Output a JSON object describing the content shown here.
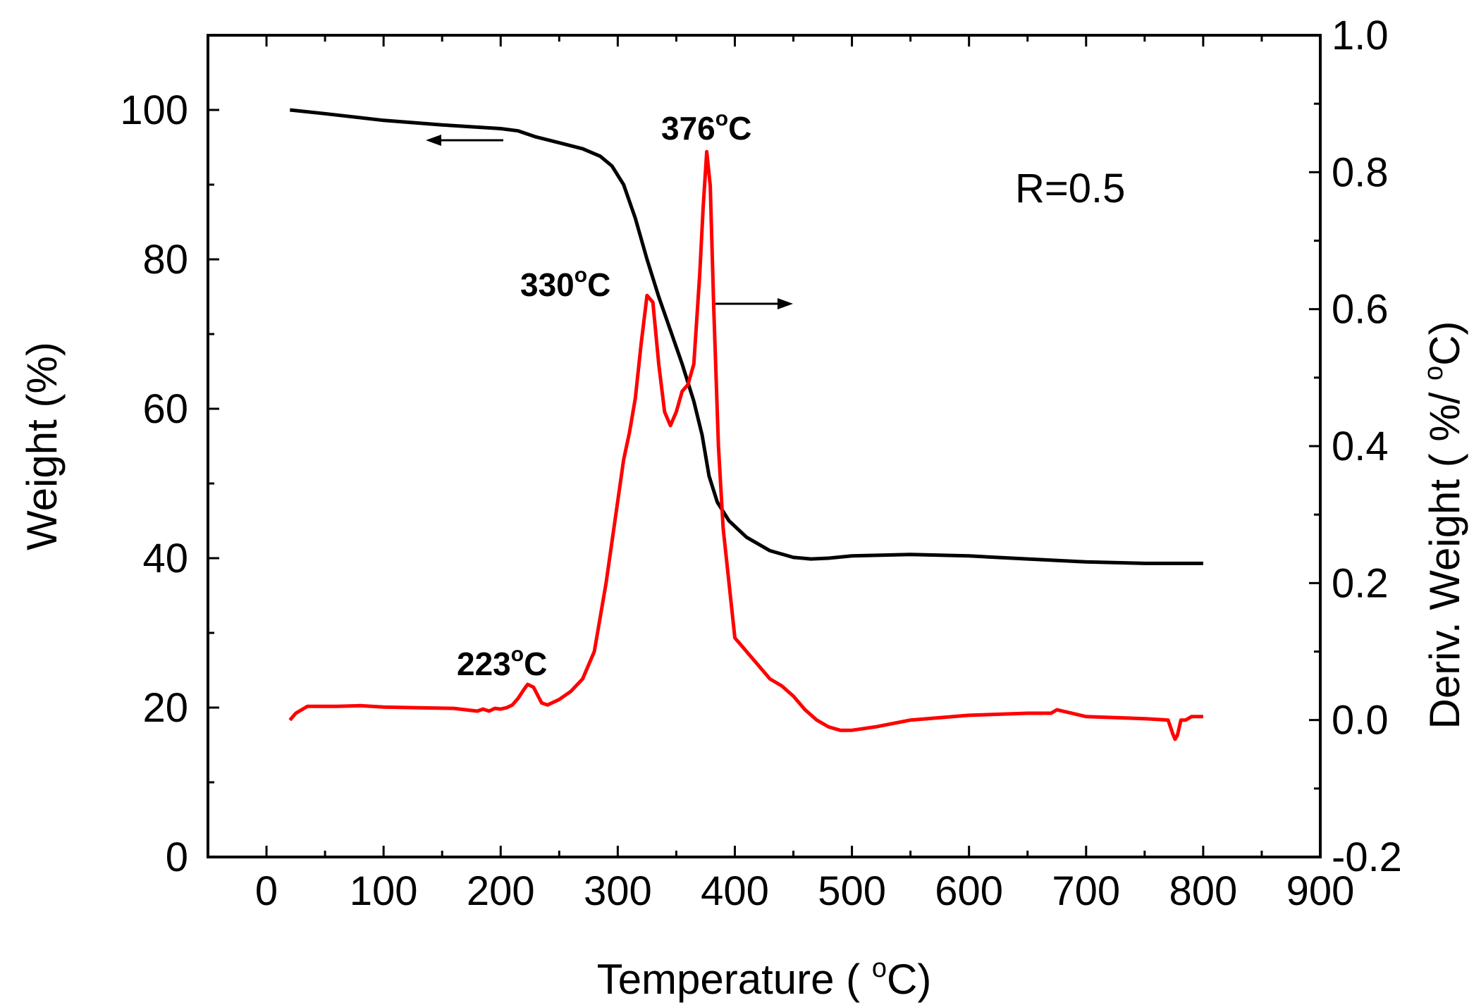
{
  "chart_data": {
    "type": "line",
    "title": "",
    "xlabel": {
      "prefix": "Temperature ( ",
      "sup": "o",
      "suffix": "C)"
    },
    "ylabel_left": "Weight (%)",
    "ylabel_right": {
      "prefix": "Deriv. Weight ( %/ ",
      "sup": "o",
      "suffix": "C)"
    },
    "xlim": [
      -50,
      900
    ],
    "ylim_left": [
      0,
      110
    ],
    "ylim_right": [
      -0.2,
      1.0
    ],
    "x_ticks": [
      0,
      100,
      200,
      300,
      400,
      500,
      600,
      700,
      800,
      900
    ],
    "x_tick_labels": [
      "0",
      "100",
      "200",
      "300",
      "400",
      "500",
      "600",
      "700",
      "800",
      "900"
    ],
    "y_left_ticks": [
      0,
      20,
      40,
      60,
      80,
      100
    ],
    "y_left_tick_labels": [
      "0",
      "20",
      "40",
      "60",
      "80",
      "100"
    ],
    "y_right_ticks": [
      -0.2,
      0.0,
      0.2,
      0.4,
      0.6,
      0.8,
      1.0
    ],
    "y_right_tick_labels": [
      "-0.2",
      "0.0",
      "0.2",
      "0.4",
      "0.6",
      "0.8",
      "1.0"
    ],
    "annotation_text": "R=0.5",
    "peak_labels": [
      {
        "name": "peak-223",
        "value": "223",
        "unit_sup": "o",
        "unit": "C"
      },
      {
        "name": "peak-330",
        "value": "330",
        "unit_sup": "o",
        "unit": "C"
      },
      {
        "name": "peak-376",
        "value": "376",
        "unit_sup": "o",
        "unit": "C"
      }
    ],
    "series": [
      {
        "name": "Weight",
        "axis": "left",
        "color": "#000000",
        "x": [
          20,
          50,
          100,
          150,
          200,
          215,
          230,
          250,
          270,
          285,
          295,
          305,
          315,
          325,
          335,
          345,
          355,
          365,
          372,
          378,
          385,
          395,
          410,
          430,
          450,
          465,
          480,
          500,
          550,
          600,
          650,
          700,
          750,
          800
        ],
        "y": [
          100,
          99.5,
          98.6,
          98.0,
          97.5,
          97.2,
          96.4,
          95.6,
          94.8,
          93.8,
          92.5,
          90.0,
          85.5,
          80.0,
          75.0,
          70.5,
          66.0,
          61.0,
          56.5,
          51.0,
          47.5,
          45.0,
          42.8,
          41.0,
          40.1,
          39.9,
          40.0,
          40.3,
          40.5,
          40.3,
          39.9,
          39.5,
          39.3,
          39.3
        ]
      },
      {
        "name": "Deriv. Weight",
        "axis": "right",
        "color": "#ff0000",
        "x": [
          20,
          25,
          30,
          35,
          45,
          60,
          80,
          100,
          130,
          160,
          180,
          185,
          190,
          195,
          200,
          205,
          210,
          215,
          220,
          223,
          228,
          235,
          240,
          250,
          260,
          270,
          280,
          290,
          300,
          305,
          310,
          315,
          320,
          325,
          330,
          335,
          340,
          345,
          350,
          355,
          360,
          365,
          370,
          373,
          376,
          379,
          382,
          386,
          390,
          395,
          400,
          405,
          410,
          420,
          430,
          440,
          450,
          460,
          470,
          480,
          490,
          500,
          520,
          550,
          600,
          650,
          670,
          675,
          700,
          750,
          770,
          774,
          776,
          778,
          781,
          785,
          790,
          800
        ],
        "y": [
          0.0,
          0.01,
          0.015,
          0.02,
          0.02,
          0.02,
          0.021,
          0.019,
          0.018,
          0.017,
          0.013,
          0.016,
          0.013,
          0.017,
          0.016,
          0.018,
          0.022,
          0.032,
          0.045,
          0.052,
          0.048,
          0.025,
          0.022,
          0.03,
          0.042,
          0.06,
          0.1,
          0.2,
          0.32,
          0.38,
          0.42,
          0.47,
          0.55,
          0.62,
          0.61,
          0.52,
          0.45,
          0.43,
          0.45,
          0.48,
          0.49,
          0.52,
          0.65,
          0.75,
          0.83,
          0.78,
          0.6,
          0.4,
          0.28,
          0.2,
          0.12,
          0.11,
          0.1,
          0.08,
          0.06,
          0.05,
          0.035,
          0.015,
          0.0,
          -0.01,
          -0.015,
          -0.015,
          -0.01,
          0.0,
          0.007,
          0.01,
          0.01,
          0.015,
          0.005,
          0.002,
          0.0,
          -0.02,
          -0.028,
          -0.022,
          0.0,
          0.0,
          0.005,
          0.005
        ]
      }
    ]
  }
}
